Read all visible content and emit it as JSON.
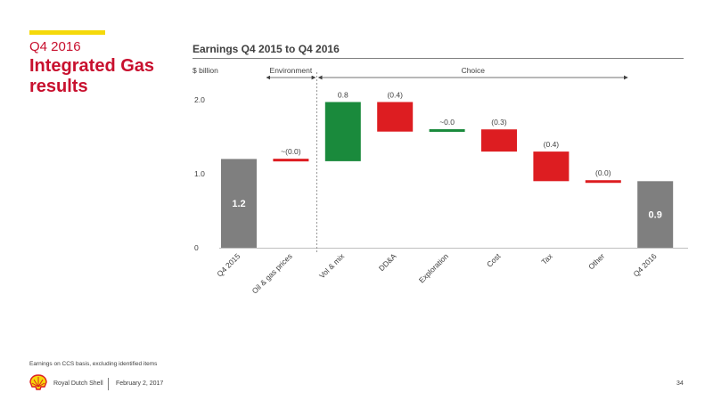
{
  "header": {
    "section_label": "Q4 2016",
    "title": "Integrated Gas results"
  },
  "footer": {
    "footnote": "Earnings on CCS basis, excluding identified items",
    "company": "Royal Dutch Shell",
    "date": "February 2, 2017",
    "page_number": "34"
  },
  "colors": {
    "total": "#7f7f7f",
    "increase": "#1a8a3c",
    "decrease": "#dd1d21",
    "accent": "#f5d90a",
    "title": "#c8102e"
  },
  "chart_data": {
    "type": "waterfall",
    "title": "Earnings Q4 2015 to Q4 2016",
    "ylabel": "$ billion",
    "ylim": [
      0,
      2.0
    ],
    "yticks": [
      "0",
      "1.0",
      "2.0"
    ],
    "groups": [
      {
        "label": "Environment",
        "from": 1,
        "to": 1
      },
      {
        "label": "Choice",
        "from": 2,
        "to": 7
      }
    ],
    "bars": [
      {
        "category": "Q4 2015",
        "kind": "total",
        "value": 1.2,
        "label": "1.2"
      },
      {
        "category": "Oil & gas prices",
        "kind": "decrease",
        "value": -0.03,
        "label": "~(0.0)"
      },
      {
        "category": "Vol & mix",
        "kind": "increase",
        "value": 0.8,
        "label": "0.8"
      },
      {
        "category": "DD&A",
        "kind": "decrease",
        "value": -0.4,
        "label": "(0.4)"
      },
      {
        "category": "Exploration",
        "kind": "increase",
        "value": 0.03,
        "label": "~0.0"
      },
      {
        "category": "Cost",
        "kind": "decrease",
        "value": -0.3,
        "label": "(0.3)"
      },
      {
        "category": "Tax",
        "kind": "decrease",
        "value": -0.4,
        "label": "(0.4)"
      },
      {
        "category": "Other",
        "kind": "decrease",
        "value": -0.01,
        "label": "(0.0)"
      },
      {
        "category": "Q4 2016",
        "kind": "total",
        "value": 0.9,
        "label": "0.9"
      }
    ]
  }
}
